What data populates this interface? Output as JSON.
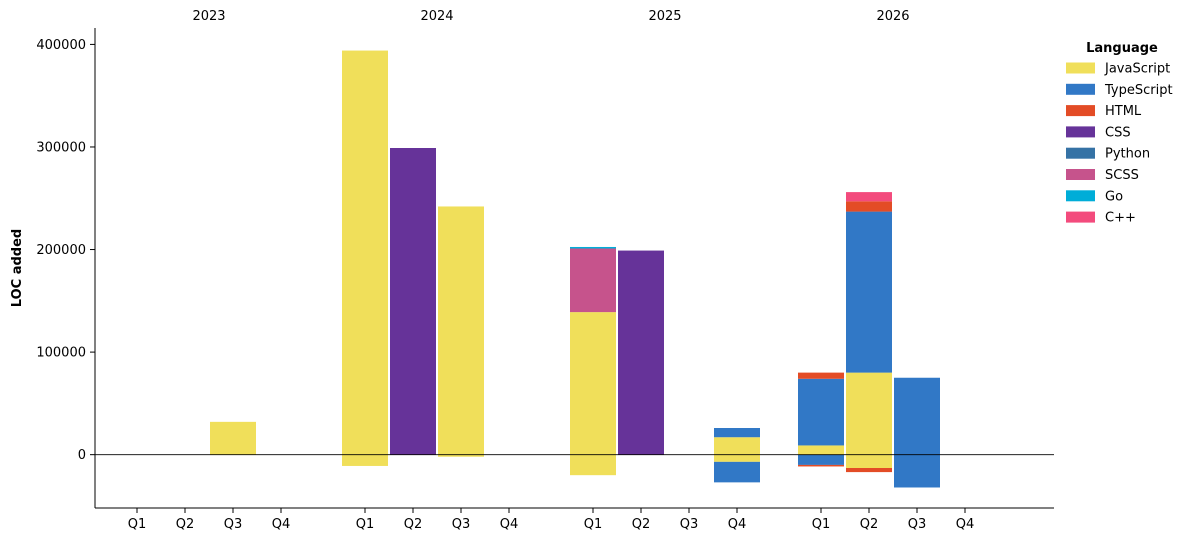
{
  "chart_data": {
    "type": "bar",
    "stacked": true,
    "title": "",
    "xlabel": "",
    "ylabel": "LOC added",
    "ylim": [
      -52000,
      416000
    ],
    "yticks": [
      "0",
      "100000",
      "200000",
      "300000",
      "400000"
    ],
    "years": [
      "2023",
      "2024",
      "2025",
      "2026"
    ],
    "quarters": [
      "Q1",
      "Q2",
      "Q3",
      "Q4"
    ],
    "legend_title": "Language",
    "legend_position": "top-right",
    "grid": false,
    "series": [
      {
        "name": "JavaScript",
        "color": "#f0df5a"
      },
      {
        "name": "TypeScript",
        "color": "#3178c6"
      },
      {
        "name": "HTML",
        "color": "#e34c26"
      },
      {
        "name": "CSS",
        "color": "#663399"
      },
      {
        "name": "Python",
        "color": "#3572a5"
      },
      {
        "name": "SCSS",
        "color": "#c6538c"
      },
      {
        "name": "Go",
        "color": "#00add8"
      },
      {
        "name": "C++",
        "color": "#f34b7d"
      }
    ],
    "bars": [
      {
        "year": "2023",
        "quarter": "Q3",
        "stack": [
          {
            "series": "JavaScript",
            "value": 32000
          }
        ]
      },
      {
        "year": "2024",
        "quarter": "Q1",
        "stack": [
          {
            "series": "JavaScript",
            "value": 394000
          },
          {
            "series": "JavaScript",
            "value": -11000
          }
        ]
      },
      {
        "year": "2024",
        "quarter": "Q2",
        "stack": [
          {
            "series": "CSS",
            "value": 299000
          }
        ]
      },
      {
        "year": "2024",
        "quarter": "Q3",
        "stack": [
          {
            "series": "JavaScript",
            "value": 242000
          },
          {
            "series": "JavaScript",
            "value": -2000
          }
        ]
      },
      {
        "year": "2025",
        "quarter": "Q1",
        "stack": [
          {
            "series": "JavaScript",
            "value": 139000
          },
          {
            "series": "SCSS",
            "value": 62000
          },
          {
            "series": "Go",
            "value": 1500
          },
          {
            "series": "JavaScript",
            "value": -20000
          }
        ]
      },
      {
        "year": "2025",
        "quarter": "Q2",
        "stack": [
          {
            "series": "CSS",
            "value": 199000
          }
        ]
      },
      {
        "year": "2025",
        "quarter": "Q4",
        "stack": [
          {
            "series": "JavaScript",
            "value": 17000
          },
          {
            "series": "TypeScript",
            "value": 9000
          },
          {
            "series": "JavaScript",
            "value": -7000
          },
          {
            "series": "TypeScript",
            "value": -20000
          }
        ]
      },
      {
        "year": "2026",
        "quarter": "Q1",
        "stack": [
          {
            "series": "JavaScript",
            "value": 9000
          },
          {
            "series": "TypeScript",
            "value": 65000
          },
          {
            "series": "HTML",
            "value": 6000
          },
          {
            "series": "TypeScript",
            "value": -10000
          },
          {
            "series": "HTML",
            "value": -1500
          }
        ]
      },
      {
        "year": "2026",
        "quarter": "Q2",
        "stack": [
          {
            "series": "JavaScript",
            "value": 80000
          },
          {
            "series": "TypeScript",
            "value": 157000
          },
          {
            "series": "HTML",
            "value": 10000
          },
          {
            "series": "C++",
            "value": 9000
          },
          {
            "series": "JavaScript",
            "value": -13000
          },
          {
            "series": "HTML",
            "value": -4000
          }
        ]
      },
      {
        "year": "2026",
        "quarter": "Q3",
        "stack": [
          {
            "series": "TypeScript",
            "value": 75000
          },
          {
            "series": "TypeScript",
            "value": -32000
          }
        ]
      }
    ]
  }
}
